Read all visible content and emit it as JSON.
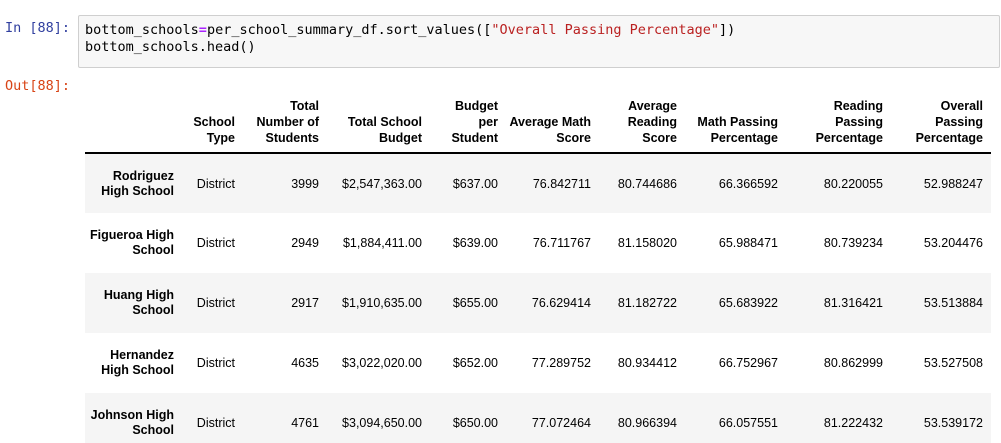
{
  "cell": {
    "in_prompt": "In [88]:",
    "out_prompt": "Out[88]:",
    "code": {
      "line1_var": "bottom_schools",
      "line1_op": "=",
      "line1_call": "per_school_summary_df.sort_values([",
      "line1_string": "\"Overall Passing Percentage\"",
      "line1_close": "])",
      "line2": "bottom_schools.head()"
    }
  },
  "table": {
    "columns": [
      "",
      "School Type",
      "Total Number of Students",
      "Total School Budget",
      "Budget per Student",
      "Average Math Score",
      "Average Reading Score",
      "Math Passing Percentage",
      "Reading Passing Percentage",
      "Overall Passing Percentage"
    ],
    "rows": [
      {
        "name": "Rodriguez High School",
        "cells": [
          "District",
          "3999",
          "$2,547,363.00",
          "$637.00",
          "76.842711",
          "80.744686",
          "66.366592",
          "80.220055",
          "52.988247"
        ]
      },
      {
        "name": "Figueroa High School",
        "cells": [
          "District",
          "2949",
          "$1,884,411.00",
          "$639.00",
          "76.711767",
          "81.158020",
          "65.988471",
          "80.739234",
          "53.204476"
        ]
      },
      {
        "name": "Huang High School",
        "cells": [
          "District",
          "2917",
          "$1,910,635.00",
          "$655.00",
          "76.629414",
          "81.182722",
          "65.683922",
          "81.316421",
          "53.513884"
        ]
      },
      {
        "name": "Hernandez High School",
        "cells": [
          "District",
          "4635",
          "$3,022,020.00",
          "$652.00",
          "77.289752",
          "80.934412",
          "66.752967",
          "80.862999",
          "53.527508"
        ]
      },
      {
        "name": "Johnson High School",
        "cells": [
          "District",
          "4761",
          "$3,094,650.00",
          "$650.00",
          "77.072464",
          "80.966394",
          "66.057551",
          "81.222432",
          "53.539172"
        ]
      }
    ]
  }
}
